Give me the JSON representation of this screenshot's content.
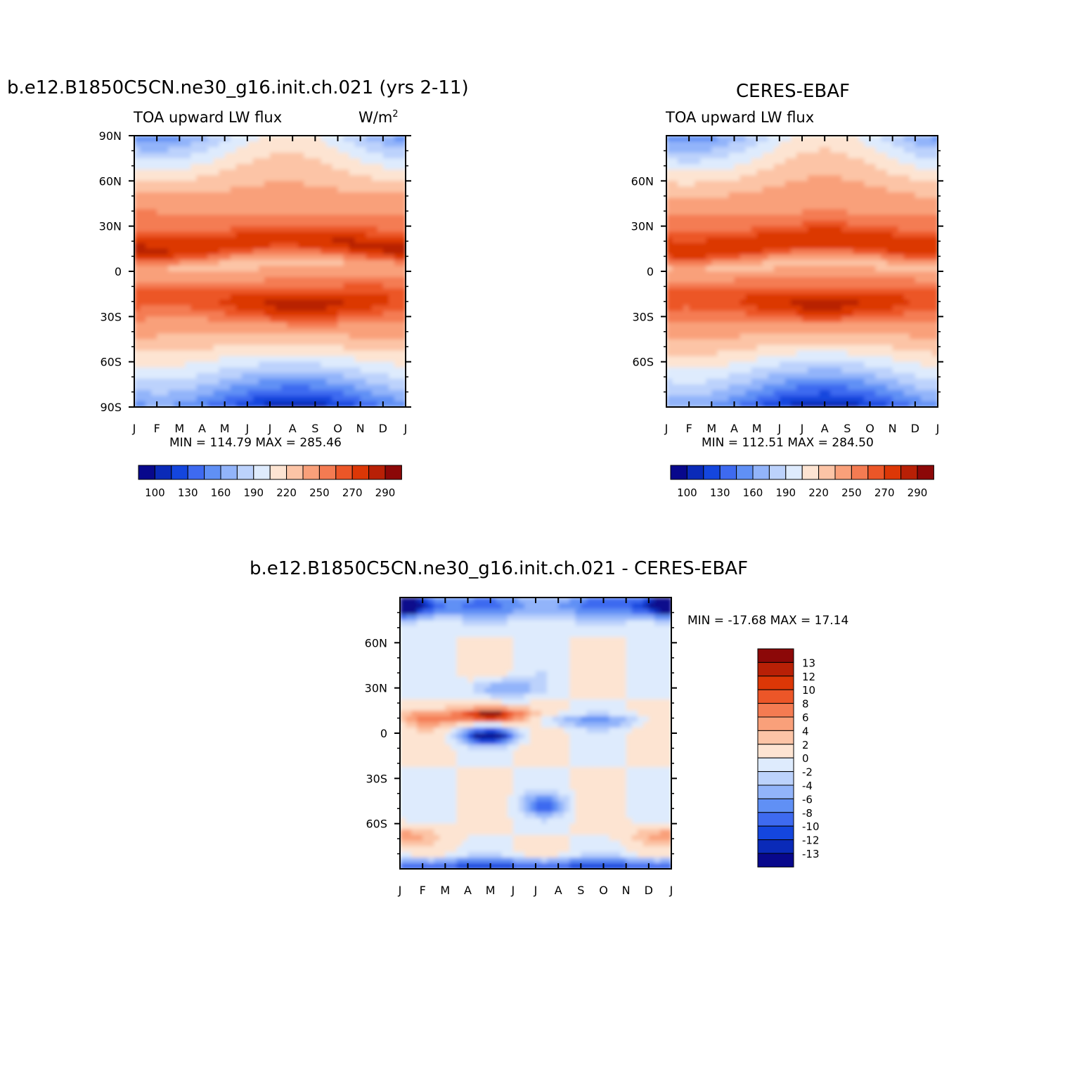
{
  "chart_data": [
    {
      "type": "heatmap",
      "id": "model",
      "title": "b.e12.B1850C5CN.ne30_g16.init.ch.021 (yrs 2-11)",
      "subtitle_left": "TOA upward LW flux",
      "units": "W/m",
      "units_sup": "2",
      "stats": "MIN =  114.79  MAX =  285.46",
      "x_ticks": [
        "J",
        "F",
        "M",
        "A",
        "M",
        "J",
        "J",
        "A",
        "S",
        "O",
        "N",
        "D",
        "J"
      ],
      "y_ticks": [
        "90N",
        "60N",
        "30N",
        "0",
        "30S",
        "60S",
        "90S"
      ],
      "ylim": [
        -90,
        90
      ],
      "colorbar_labels": [
        "100",
        "130",
        "160",
        "190",
        "220",
        "250",
        "270",
        "290"
      ],
      "min": 114.79,
      "max": 285.46
    },
    {
      "type": "heatmap",
      "id": "obs",
      "title": "CERES-EBAF",
      "subtitle_left": "TOA upward LW flux",
      "stats": "MIN =  112.51  MAX =  284.50",
      "x_ticks": [
        "J",
        "F",
        "M",
        "A",
        "M",
        "J",
        "J",
        "A",
        "S",
        "O",
        "N",
        "D",
        "J"
      ],
      "y_ticks": [
        "60N",
        "30N",
        "0",
        "30S",
        "60S"
      ],
      "ylim": [
        -90,
        90
      ],
      "colorbar_labels": [
        "100",
        "130",
        "160",
        "190",
        "220",
        "250",
        "270",
        "290"
      ],
      "min": 112.51,
      "max": 284.5
    },
    {
      "type": "heatmap",
      "id": "diff",
      "title": "b.e12.B1850C5CN.ne30_g16.init.ch.021 - CERES-EBAF",
      "stats": "MIN = -17.68  MAX =   17.14",
      "x_ticks": [
        "J",
        "F",
        "M",
        "A",
        "M",
        "J",
        "J",
        "A",
        "S",
        "O",
        "N",
        "D",
        "J"
      ],
      "y_ticks": [
        "60N",
        "30N",
        "0",
        "30S",
        "60S"
      ],
      "ylim": [
        -90,
        90
      ],
      "colorbar_labels": [
        "13",
        "12",
        "10",
        "8",
        "6",
        "4",
        "2",
        "0",
        "-2",
        "-4",
        "-6",
        "-8",
        "-10",
        "-12",
        "-13"
      ],
      "min": -17.68,
      "max": 17.14
    }
  ],
  "colors": {
    "flux_palette": [
      "#08088c",
      "#0a2ab8",
      "#1446de",
      "#3e6af0",
      "#6090f5",
      "#92b4fa",
      "#bcd2fc",
      "#deebfd",
      "#fde4d2",
      "#fcc4a6",
      "#f9a07a",
      "#f47b52",
      "#ec5628",
      "#dc3706",
      "#b82006",
      "#8c0808"
    ],
    "diff_palette": [
      "#8c0808",
      "#b82006",
      "#dc3706",
      "#ec5628",
      "#f47b52",
      "#f9a07a",
      "#fcc4a6",
      "#fde4d2",
      "#deebfd",
      "#bcd2fc",
      "#92b4fa",
      "#6090f5",
      "#3e6af0",
      "#1446de",
      "#0a2ab8",
      "#08088c"
    ]
  }
}
